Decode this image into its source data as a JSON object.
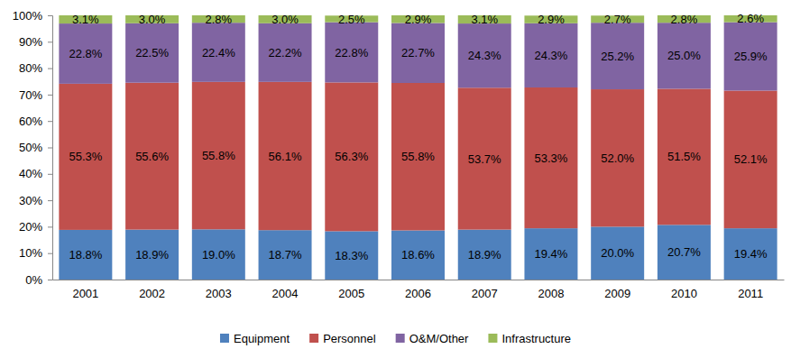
{
  "chart_data": {
    "type": "bar",
    "stacked": true,
    "data_labels": true,
    "legend": "bottom",
    "grid": false,
    "categories": [
      "2001",
      "2002",
      "2003",
      "2004",
      "2005",
      "2006",
      "2007",
      "2008",
      "2009",
      "2010",
      "2011"
    ],
    "ylim": [
      0,
      100
    ],
    "yticks": [
      {
        "value": 0,
        "label": "0%"
      },
      {
        "value": 10,
        "label": "10%"
      },
      {
        "value": 20,
        "label": "20%"
      },
      {
        "value": 30,
        "label": "30%"
      },
      {
        "value": 40,
        "label": "40%"
      },
      {
        "value": 50,
        "label": "50%"
      },
      {
        "value": 60,
        "label": "60%"
      },
      {
        "value": 70,
        "label": "70%"
      },
      {
        "value": 80,
        "label": "80%"
      },
      {
        "value": 90,
        "label": "90%"
      },
      {
        "value": 100,
        "label": "100%"
      }
    ],
    "series": [
      {
        "name": "Equipment",
        "color": "#4f81bd",
        "values": [
          18.8,
          18.9,
          19.0,
          18.7,
          18.3,
          18.6,
          18.9,
          19.4,
          20.0,
          20.7,
          19.4
        ],
        "value_labels": [
          "18.8%",
          "18.9%",
          "19.0%",
          "18.7%",
          "18.3%",
          "18.6%",
          "18.9%",
          "19.4%",
          "20.0%",
          "20.7%",
          "19.4%"
        ]
      },
      {
        "name": "Personnel",
        "color": "#c0504d",
        "values": [
          55.3,
          55.6,
          55.8,
          56.1,
          56.3,
          55.8,
          53.7,
          53.3,
          52.0,
          51.5,
          52.1
        ],
        "value_labels": [
          "55.3%",
          "55.6%",
          "55.8%",
          "56.1%",
          "56.3%",
          "55.8%",
          "53.7%",
          "53.3%",
          "52.0%",
          "51.5%",
          "52.1%"
        ]
      },
      {
        "name": "O&M/Other",
        "color": "#8064a2",
        "values": [
          22.8,
          22.5,
          22.4,
          22.2,
          22.8,
          22.7,
          24.3,
          24.3,
          25.2,
          25.0,
          25.9
        ],
        "value_labels": [
          "22.8%",
          "22.5%",
          "22.4%",
          "22.2%",
          "22.8%",
          "22.7%",
          "24.3%",
          "24.3%",
          "25.2%",
          "25.0%",
          "25.9%"
        ]
      },
      {
        "name": "Infrastructure",
        "color": "#9bbb59",
        "values": [
          3.1,
          3.0,
          2.8,
          3.0,
          2.5,
          2.9,
          3.1,
          2.9,
          2.7,
          2.8,
          2.6
        ],
        "value_labels": [
          "3.1%",
          "3.0%",
          "2.8%",
          "3.0%",
          "2.5%",
          "2.9%",
          "3.1%",
          "2.9%",
          "2.7%",
          "2.8%",
          "2.6%"
        ]
      }
    ]
  }
}
